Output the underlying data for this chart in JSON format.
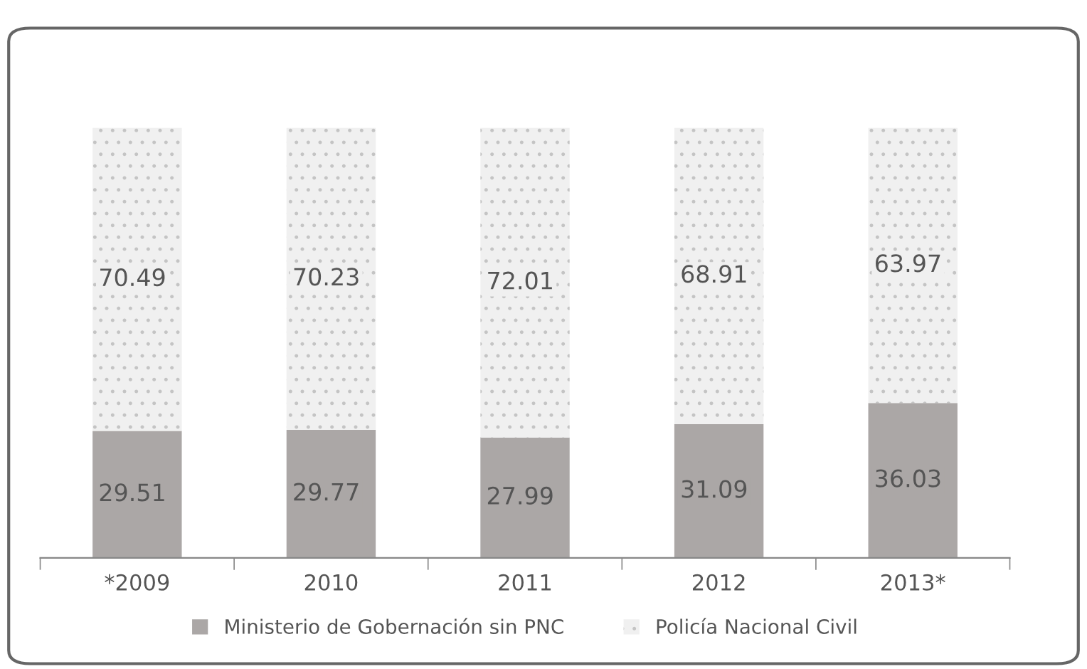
{
  "chart_data": {
    "type": "bar",
    "stacked": true,
    "categories": [
      "*2009",
      "2010",
      "2011",
      "2012",
      "2013*"
    ],
    "series": [
      {
        "name": "Ministerio de Gobernación sin PNC",
        "color": "#aba7a6",
        "values": [
          29.51,
          29.77,
          27.99,
          31.09,
          36.03
        ]
      },
      {
        "name": "Policía Nacional Civil",
        "color": "#f0f0f0",
        "values": [
          70.49,
          70.23,
          72.01,
          68.91,
          63.97
        ]
      }
    ],
    "ylim": [
      0,
      100
    ],
    "data_labels": true,
    "legend": "bottom",
    "tick_labels": "x",
    "grid": false
  }
}
